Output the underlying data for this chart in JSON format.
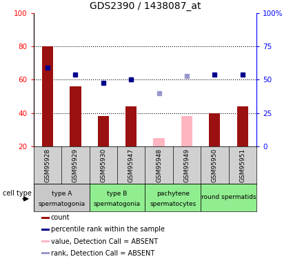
{
  "title": "GDS2390 / 1438087_at",
  "samples": [
    "GSM95928",
    "GSM95929",
    "GSM95930",
    "GSM95947",
    "GSM95948",
    "GSM95949",
    "GSM95950",
    "GSM95951"
  ],
  "count_bars": [
    80,
    56,
    38,
    44,
    null,
    null,
    40,
    44
  ],
  "count_absent_bars": [
    null,
    null,
    null,
    null,
    25,
    38,
    null,
    null
  ],
  "percentile_rank": [
    67,
    63,
    58,
    60,
    null,
    null,
    63,
    63
  ],
  "percentile_rank_absent": [
    null,
    null,
    null,
    null,
    52,
    62,
    null,
    null
  ],
  "ylim_left": [
    20,
    100
  ],
  "yticks_left": [
    20,
    40,
    60,
    80,
    100
  ],
  "yticks_right": [
    0,
    25,
    50,
    75,
    100
  ],
  "ytick_labels_right": [
    "0",
    "25",
    "50",
    "75",
    "100%"
  ],
  "cell_groups": [
    {
      "xstart": 0,
      "xend": 1,
      "label1": "type A",
      "label2": "spermatogonia",
      "color": "#c8c8c8"
    },
    {
      "xstart": 2,
      "xend": 3,
      "label1": "type B",
      "label2": "spermatogonia",
      "color": "#90ee90"
    },
    {
      "xstart": 4,
      "xend": 5,
      "label1": "pachytene",
      "label2": "spermatocytes",
      "color": "#90ee90"
    },
    {
      "xstart": 6,
      "xend": 7,
      "label1": "round spermatids",
      "label2": "",
      "color": "#90ee90"
    }
  ],
  "bar_color": "#9B1010",
  "bar_absent_color": "#FFB6C1",
  "dot_color": "#00008B",
  "dot_absent_color": "#9898CC",
  "legend_items": [
    {
      "color": "#9B1010",
      "text": "count"
    },
    {
      "color": "#00008B",
      "text": "percentile rank within the sample"
    },
    {
      "color": "#FFB6C1",
      "text": "value, Detection Call = ABSENT"
    },
    {
      "color": "#9898CC",
      "text": "rank, Detection Call = ABSENT"
    }
  ]
}
